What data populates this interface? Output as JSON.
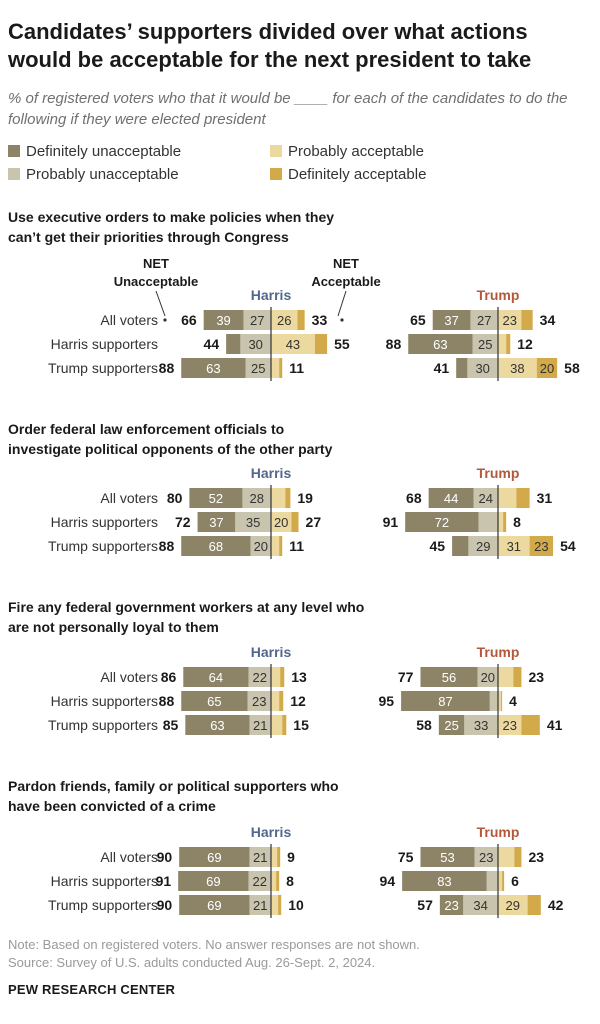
{
  "title": "Candidates’ supporters divided over what actions would be acceptable for the next president to take",
  "subtitle": "% of registered voters who that it would be ____ for each of the candidates to do the following if they were elected president",
  "legend": {
    "items": [
      {
        "label": "Definitely unacceptable",
        "color": "#8d8468"
      },
      {
        "label": "Probably unacceptable",
        "color": "#c9c4ae"
      },
      {
        "label": "Probably acceptable",
        "color": "#ecd9a0"
      },
      {
        "label": "Definitely acceptable",
        "color": "#d2aa4a"
      }
    ]
  },
  "header": {
    "net_unacceptable": "NET Unacceptable",
    "net_acceptable": "NET Acceptable"
  },
  "colors": {
    "harris": "#52688b",
    "trump": "#b3583b",
    "definitely_unacceptable": "#8d8468",
    "probably_unacceptable": "#c9c4ae",
    "probably_acceptable": "#ecd9a0",
    "definitely_acceptable": "#d2aa4a"
  },
  "chart_data": {
    "type": "bar",
    "layout": "diverging stacked horizontal bar",
    "candidates": [
      "Harris",
      "Trump"
    ],
    "rows": [
      "All voters",
      "Harris supporters",
      "Trump supporters"
    ],
    "segments": [
      "Definitely unacceptable",
      "Probably unacceptable",
      "Probably acceptable",
      "Definitely acceptable"
    ],
    "panels": [
      {
        "question": "Use executive orders to make policies when they can’t get their priorities through Congress",
        "Harris": [
          {
            "row": "All voters",
            "net_unacc": 66,
            "def_unacc": 39,
            "prob_unacc": 27,
            "prob_acc": 26,
            "def_acc": 7,
            "net_acc": 33,
            "labels": [
              "39",
              "27",
              "26",
              ""
            ]
          },
          {
            "row": "Harris supporters",
            "net_unacc": 44,
            "def_unacc": 14,
            "prob_unacc": 30,
            "prob_acc": 43,
            "def_acc": 12,
            "net_acc": 55,
            "labels": [
              "",
              "30",
              "43",
              ""
            ]
          },
          {
            "row": "Trump supporters",
            "net_unacc": 88,
            "def_unacc": 63,
            "prob_unacc": 25,
            "prob_acc": 8,
            "def_acc": 3,
            "net_acc": 11,
            "labels": [
              "63",
              "25",
              "",
              ""
            ]
          }
        ],
        "Trump": [
          {
            "row": "All voters",
            "net_unacc": 65,
            "def_unacc": 37,
            "prob_unacc": 27,
            "prob_acc": 23,
            "def_acc": 11,
            "net_acc": 34,
            "labels": [
              "37",
              "27",
              "23",
              ""
            ]
          },
          {
            "row": "Harris supporters",
            "net_unacc": 88,
            "def_unacc": 63,
            "prob_unacc": 25,
            "prob_acc": 8,
            "def_acc": 4,
            "net_acc": 12,
            "labels": [
              "63",
              "25",
              "",
              ""
            ]
          },
          {
            "row": "Trump supporters",
            "net_unacc": 41,
            "def_unacc": 11,
            "prob_unacc": 30,
            "prob_acc": 38,
            "def_acc": 20,
            "net_acc": 58,
            "labels": [
              "",
              "30",
              "38",
              "20"
            ]
          }
        ]
      },
      {
        "question": "Order federal law enforcement officials to investigate political opponents of the other party",
        "Harris": [
          {
            "row": "All voters",
            "net_unacc": 80,
            "def_unacc": 52,
            "prob_unacc": 28,
            "prob_acc": 14,
            "def_acc": 5,
            "net_acc": 19,
            "labels": [
              "52",
              "28",
              "",
              ""
            ]
          },
          {
            "row": "Harris supporters",
            "net_unacc": 72,
            "def_unacc": 37,
            "prob_unacc": 35,
            "prob_acc": 20,
            "def_acc": 7,
            "net_acc": 27,
            "labels": [
              "37",
              "35",
              "20",
              ""
            ]
          },
          {
            "row": "Trump supporters",
            "net_unacc": 88,
            "def_unacc": 68,
            "prob_unacc": 20,
            "prob_acc": 8,
            "def_acc": 3,
            "net_acc": 11,
            "labels": [
              "68",
              "20",
              "",
              ""
            ]
          }
        ],
        "Trump": [
          {
            "row": "All voters",
            "net_unacc": 68,
            "def_unacc": 44,
            "prob_unacc": 24,
            "prob_acc": 18,
            "def_acc": 13,
            "net_acc": 31,
            "labels": [
              "44",
              "24",
              "",
              ""
            ]
          },
          {
            "row": "Harris supporters",
            "net_unacc": 91,
            "def_unacc": 72,
            "prob_unacc": 19,
            "prob_acc": 5,
            "def_acc": 3,
            "net_acc": 8,
            "labels": [
              "72",
              "",
              "",
              ""
            ]
          },
          {
            "row": "Trump supporters",
            "net_unacc": 45,
            "def_unacc": 16,
            "prob_unacc": 29,
            "prob_acc": 31,
            "def_acc": 23,
            "net_acc": 54,
            "labels": [
              "",
              "29",
              "31",
              "23"
            ]
          }
        ]
      },
      {
        "question": "Fire any federal government workers at any level who are not personally loyal to them",
        "Harris": [
          {
            "row": "All voters",
            "net_unacc": 86,
            "def_unacc": 64,
            "prob_unacc": 22,
            "prob_acc": 9,
            "def_acc": 4,
            "net_acc": 13,
            "labels": [
              "64",
              "22",
              "",
              ""
            ]
          },
          {
            "row": "Harris supporters",
            "net_unacc": 88,
            "def_unacc": 65,
            "prob_unacc": 23,
            "prob_acc": 8,
            "def_acc": 4,
            "net_acc": 12,
            "labels": [
              "65",
              "23",
              "",
              ""
            ]
          },
          {
            "row": "Trump supporters",
            "net_unacc": 85,
            "def_unacc": 63,
            "prob_unacc": 21,
            "prob_acc": 11,
            "def_acc": 4,
            "net_acc": 15,
            "labels": [
              "63",
              "21",
              "",
              ""
            ]
          }
        ],
        "Trump": [
          {
            "row": "All voters",
            "net_unacc": 77,
            "def_unacc": 56,
            "prob_unacc": 20,
            "prob_acc": 15,
            "def_acc": 8,
            "net_acc": 23,
            "labels": [
              "56",
              "20",
              "",
              ""
            ]
          },
          {
            "row": "Harris supporters",
            "net_unacc": 95,
            "def_unacc": 87,
            "prob_unacc": 8,
            "prob_acc": 3,
            "def_acc": 1,
            "net_acc": 4,
            "labels": [
              "87",
              "",
              "",
              ""
            ]
          },
          {
            "row": "Trump supporters",
            "net_unacc": 58,
            "def_unacc": 25,
            "prob_unacc": 33,
            "prob_acc": 23,
            "def_acc": 18,
            "net_acc": 41,
            "labels": [
              "25",
              "33",
              "23",
              ""
            ]
          }
        ]
      },
      {
        "question": "Pardon friends, family or political supporters who have been convicted of a crime",
        "Harris": [
          {
            "row": "All voters",
            "net_unacc": 90,
            "def_unacc": 69,
            "prob_unacc": 21,
            "prob_acc": 6,
            "def_acc": 3,
            "net_acc": 9,
            "labels": [
              "69",
              "21",
              "",
              ""
            ]
          },
          {
            "row": "Harris supporters",
            "net_unacc": 91,
            "def_unacc": 69,
            "prob_unacc": 22,
            "prob_acc": 5,
            "def_acc": 3,
            "net_acc": 8,
            "labels": [
              "69",
              "22",
              "",
              ""
            ]
          },
          {
            "row": "Trump supporters",
            "net_unacc": 90,
            "def_unacc": 69,
            "prob_unacc": 21,
            "prob_acc": 7,
            "def_acc": 3,
            "net_acc": 10,
            "labels": [
              "69",
              "21",
              "",
              ""
            ]
          }
        ],
        "Trump": [
          {
            "row": "All voters",
            "net_unacc": 75,
            "def_unacc": 53,
            "prob_unacc": 23,
            "prob_acc": 16,
            "def_acc": 7,
            "net_acc": 23,
            "labels": [
              "53",
              "23",
              "",
              ""
            ]
          },
          {
            "row": "Harris supporters",
            "net_unacc": 94,
            "def_unacc": 83,
            "prob_unacc": 11,
            "prob_acc": 4,
            "def_acc": 2,
            "net_acc": 6,
            "labels": [
              "83",
              "",
              "",
              ""
            ]
          },
          {
            "row": "Trump supporters",
            "net_unacc": 57,
            "def_unacc": 23,
            "prob_unacc": 34,
            "prob_acc": 29,
            "def_acc": 13,
            "net_acc": 42,
            "labels": [
              "23",
              "34",
              "29",
              ""
            ]
          }
        ]
      }
    ]
  },
  "note": "Note: Based on registered voters. No answer responses are not shown.",
  "source": "Source: Survey of U.S. adults conducted Aug. 26-Sept. 2, 2024.",
  "org": "PEW RESEARCH CENTER"
}
